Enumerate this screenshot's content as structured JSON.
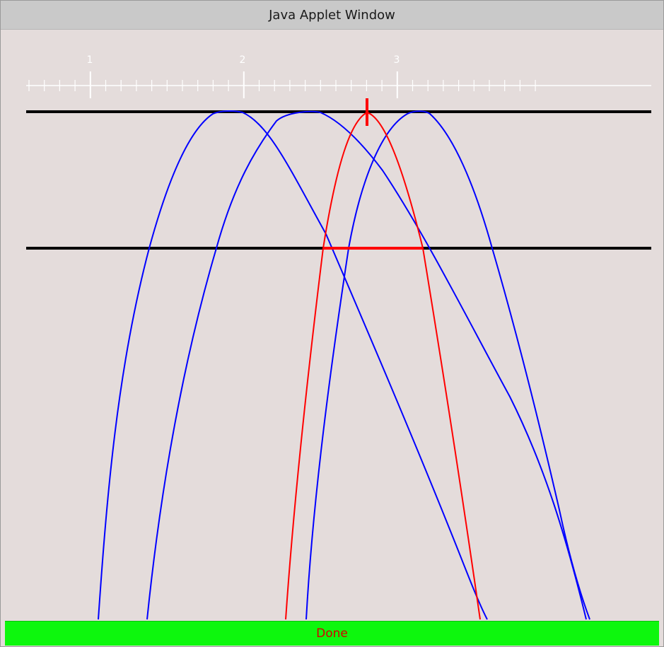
{
  "window": {
    "title": "Java Applet Window"
  },
  "ruler": {
    "labels": [
      "1",
      "2",
      "3"
    ]
  },
  "status": {
    "text": "Done"
  },
  "colors": {
    "window_bg": "#e4dcdb",
    "curve": "#0000ff",
    "highlight": "#ff0000",
    "band_line": "#000000",
    "status_bg": "#0df70d",
    "status_text": "#d40000"
  }
}
